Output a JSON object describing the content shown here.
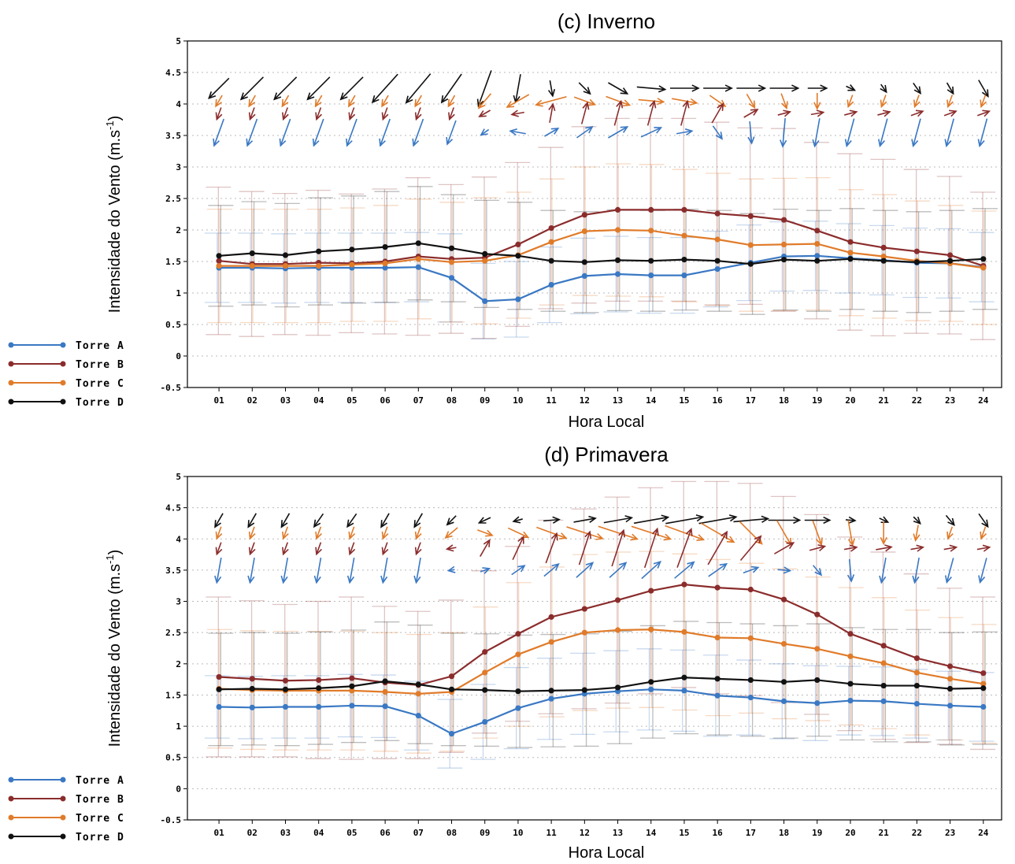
{
  "chart_data": [
    {
      "type": "line",
      "title": "(c) Inverno",
      "xlabel": "Hora Local",
      "ylabel": "Intensidade do Vento (m.s",
      "ylabel_sup": "-1",
      "ylabel_close": ")",
      "ylim": [
        -0.5,
        5
      ],
      "yticks": [
        "5",
        "4.5",
        "4",
        "3.5",
        "3",
        "2.5",
        "2",
        "1.5",
        "1",
        "0.5",
        "0",
        "-0.5"
      ],
      "ytick_values": [
        5,
        4.5,
        4,
        3.5,
        3,
        2.5,
        2,
        1.5,
        1,
        0.5,
        0,
        -0.5
      ],
      "categories": [
        "01",
        "02",
        "03",
        "04",
        "05",
        "06",
        "07",
        "08",
        "09",
        "10",
        "11",
        "12",
        "13",
        "14",
        "15",
        "16",
        "17",
        "18",
        "19",
        "20",
        "21",
        "22",
        "23",
        "24"
      ],
      "grid": true,
      "legend_placement": "bottom-left outside",
      "series": [
        {
          "name": "Torre A",
          "color": "#3a78c3",
          "values": [
            1.4,
            1.4,
            1.39,
            1.4,
            1.4,
            1.4,
            1.41,
            1.24,
            0.87,
            0.9,
            1.13,
            1.27,
            1.3,
            1.28,
            1.28,
            1.38,
            1.48,
            1.58,
            1.59,
            1.55,
            1.52,
            1.48,
            1.47,
            1.41
          ],
          "err": [
            0.55,
            0.55,
            0.55,
            0.55,
            0.55,
            0.55,
            0.55,
            0.7,
            0.6,
            0.6,
            0.6,
            0.6,
            0.6,
            0.6,
            0.6,
            0.6,
            0.6,
            0.55,
            0.55,
            0.55,
            0.55,
            0.55,
            0.55,
            0.55
          ]
        },
        {
          "name": "Torre B",
          "color": "#8b2c2c",
          "values": [
            1.51,
            1.46,
            1.46,
            1.48,
            1.47,
            1.5,
            1.58,
            1.54,
            1.56,
            1.77,
            2.03,
            2.24,
            2.32,
            2.32,
            2.32,
            2.26,
            2.22,
            2.16,
            1.99,
            1.81,
            1.72,
            1.66,
            1.6,
            1.43
          ],
          "err": [
            1.17,
            1.15,
            1.12,
            1.15,
            1.1,
            1.15,
            1.25,
            1.18,
            1.28,
            1.3,
            1.28,
            1.4,
            1.45,
            1.45,
            1.45,
            1.45,
            1.4,
            1.45,
            1.4,
            1.4,
            1.4,
            1.3,
            1.25,
            1.17
          ]
        },
        {
          "name": "Torre C",
          "color": "#e07b2a",
          "values": [
            1.43,
            1.43,
            1.43,
            1.43,
            1.45,
            1.47,
            1.54,
            1.49,
            1.51,
            1.6,
            1.81,
            1.98,
            2.0,
            1.99,
            1.91,
            1.85,
            1.76,
            1.77,
            1.78,
            1.64,
            1.58,
            1.51,
            1.47,
            1.4
          ],
          "err": [
            0.9,
            0.9,
            0.9,
            0.9,
            0.9,
            0.92,
            0.95,
            0.95,
            1.0,
            1.0,
            1.0,
            1.02,
            1.05,
            1.05,
            1.05,
            1.05,
            1.05,
            1.05,
            1.05,
            1.0,
            0.98,
            0.95,
            0.92,
            0.9
          ]
        },
        {
          "name": "Torre D",
          "color": "#111111",
          "values": [
            1.59,
            1.63,
            1.6,
            1.66,
            1.69,
            1.73,
            1.79,
            1.71,
            1.62,
            1.59,
            1.51,
            1.49,
            1.52,
            1.51,
            1.53,
            1.51,
            1.46,
            1.53,
            1.51,
            1.54,
            1.51,
            1.49,
            1.51,
            1.54
          ],
          "err": [
            0.8,
            0.82,
            0.82,
            0.85,
            0.85,
            0.88,
            0.9,
            0.85,
            0.85,
            0.85,
            0.8,
            0.8,
            0.8,
            0.8,
            0.8,
            0.8,
            0.8,
            0.8,
            0.8,
            0.8,
            0.8,
            0.8,
            0.8,
            0.8
          ]
        }
      ],
      "wind_vectors": {
        "Torre D": {
          "y": 4.25,
          "angles": [
            225,
            225,
            225,
            225,
            225,
            222,
            220,
            215,
            200,
            190,
            170,
            135,
            120,
            95,
            90,
            90,
            90,
            90,
            90,
            115,
            145,
            145,
            150,
            150
          ],
          "lengths": [
            0.9,
            1.0,
            1.0,
            1.0,
            1.0,
            1.2,
            1.2,
            1.1,
            1.2,
            0.9,
            0.5,
            0.5,
            0.7,
            0.9,
            0.9,
            0.9,
            0.9,
            0.9,
            0.6,
            0.3,
            0.3,
            0.4,
            0.4,
            0.6
          ]
        },
        "Torre C": {
          "y": 4.05,
          "angles": [
            210,
            210,
            210,
            210,
            210,
            210,
            210,
            210,
            220,
            240,
            255,
            110,
            110,
            95,
            100,
            125,
            150,
            160,
            180,
            200,
            200,
            200,
            200,
            200
          ],
          "lengths": [
            0.4,
            0.4,
            0.4,
            0.4,
            0.4,
            0.4,
            0.4,
            0.4,
            0.6,
            0.8,
            1.0,
            0.7,
            0.8,
            0.8,
            0.8,
            0.6,
            0.5,
            0.5,
            0.5,
            0.4,
            0.4,
            0.4,
            0.4,
            0.4
          ]
        },
        "Torre B": {
          "y": 3.85,
          "angles": [
            200,
            200,
            200,
            200,
            200,
            200,
            200,
            200,
            240,
            260,
            10,
            15,
            15,
            15,
            15,
            30,
            60,
            75,
            80,
            75,
            75,
            70,
            70,
            70
          ],
          "lengths": [
            0.4,
            0.4,
            0.4,
            0.4,
            0.4,
            0.4,
            0.4,
            0.4,
            0.4,
            0.4,
            0.6,
            0.7,
            0.8,
            0.8,
            0.8,
            0.7,
            0.5,
            0.4,
            0.4,
            0.4,
            0.4,
            0.4,
            0.4,
            0.4
          ]
        },
        "Torre A": {
          "y": 3.55,
          "angles": [
            200,
            200,
            200,
            200,
            200,
            200,
            200,
            200,
            235,
            280,
            60,
            55,
            60,
            65,
            80,
            145,
            175,
            185,
            190,
            195,
            195,
            195,
            195,
            195
          ],
          "lengths": [
            0.9,
            0.9,
            0.9,
            0.9,
            0.9,
            0.9,
            0.9,
            0.8,
            0.3,
            0.5,
            0.5,
            0.6,
            0.7,
            0.7,
            0.5,
            0.5,
            0.7,
            0.9,
            0.9,
            0.9,
            0.9,
            0.9,
            0.9,
            0.9
          ]
        }
      }
    },
    {
      "type": "line",
      "title": "(d) Primavera",
      "xlabel": "Hora Local",
      "ylabel": "Intensidade do Vento (m.s",
      "ylabel_sup": "-1",
      "ylabel_close": ")",
      "ylim": [
        -0.5,
        5
      ],
      "yticks": [
        "5",
        "4.5",
        "4",
        "3.5",
        "3",
        "2.5",
        "2",
        "1.5",
        "1",
        "0.5",
        "0",
        "-0.5"
      ],
      "ytick_values": [
        5,
        4.5,
        4,
        3.5,
        3,
        2.5,
        2,
        1.5,
        1,
        0.5,
        0,
        -0.5
      ],
      "categories": [
        "01",
        "02",
        "03",
        "04",
        "05",
        "06",
        "07",
        "08",
        "09",
        "10",
        "11",
        "12",
        "13",
        "14",
        "15",
        "16",
        "17",
        "18",
        "19",
        "20",
        "21",
        "22",
        "23",
        "24"
      ],
      "grid": true,
      "legend_placement": "bottom-left outside",
      "series": [
        {
          "name": "Torre A",
          "color": "#3a78c3",
          "values": [
            1.31,
            1.3,
            1.31,
            1.31,
            1.33,
            1.32,
            1.17,
            0.88,
            1.07,
            1.29,
            1.44,
            1.52,
            1.56,
            1.59,
            1.57,
            1.49,
            1.46,
            1.4,
            1.37,
            1.41,
            1.4,
            1.36,
            1.33,
            1.31
          ],
          "err": [
            0.5,
            0.5,
            0.5,
            0.5,
            0.5,
            0.5,
            0.55,
            0.55,
            0.6,
            0.65,
            0.65,
            0.65,
            0.65,
            0.65,
            0.65,
            0.65,
            0.6,
            0.6,
            0.6,
            0.55,
            0.55,
            0.55,
            0.55,
            0.55
          ]
        },
        {
          "name": "Torre B",
          "color": "#8b2c2c",
          "values": [
            1.79,
            1.76,
            1.73,
            1.74,
            1.77,
            1.7,
            1.66,
            1.8,
            2.19,
            2.48,
            2.75,
            2.88,
            3.02,
            3.17,
            3.27,
            3.22,
            3.19,
            3.03,
            2.79,
            2.48,
            2.29,
            2.09,
            1.96,
            1.85
          ],
          "err": [
            1.28,
            1.25,
            1.22,
            1.26,
            1.3,
            1.22,
            1.18,
            1.22,
            1.3,
            1.4,
            1.55,
            1.6,
            1.65,
            1.65,
            1.65,
            1.7,
            1.7,
            1.65,
            1.6,
            1.55,
            1.5,
            1.35,
            1.25,
            1.22
          ]
        },
        {
          "name": "Torre C",
          "color": "#e07b2a",
          "values": [
            1.6,
            1.58,
            1.57,
            1.57,
            1.57,
            1.55,
            1.52,
            1.55,
            1.86,
            2.15,
            2.35,
            2.5,
            2.54,
            2.55,
            2.51,
            2.42,
            2.41,
            2.32,
            2.24,
            2.12,
            2.01,
            1.86,
            1.76,
            1.68
          ],
          "err": [
            0.95,
            0.95,
            0.95,
            0.95,
            0.95,
            0.95,
            0.95,
            0.95,
            1.05,
            1.15,
            1.2,
            1.25,
            1.25,
            1.25,
            1.25,
            1.25,
            1.2,
            1.2,
            1.15,
            1.1,
            1.05,
            1.0,
            0.98,
            0.95
          ]
        },
        {
          "name": "Torre D",
          "color": "#111111",
          "values": [
            1.59,
            1.6,
            1.59,
            1.61,
            1.64,
            1.72,
            1.67,
            1.59,
            1.58,
            1.56,
            1.57,
            1.58,
            1.62,
            1.71,
            1.78,
            1.76,
            1.74,
            1.71,
            1.74,
            1.68,
            1.65,
            1.65,
            1.6,
            1.61
          ],
          "err": [
            0.9,
            0.9,
            0.9,
            0.9,
            0.9,
            0.95,
            0.95,
            0.9,
            0.9,
            0.9,
            0.9,
            0.9,
            0.9,
            0.9,
            0.9,
            0.9,
            0.9,
            0.9,
            0.9,
            0.9,
            0.9,
            0.9,
            0.9,
            0.9
          ]
        }
      ],
      "wind_vectors": {
        "Torre D": {
          "y": 4.3,
          "angles": [
            210,
            210,
            210,
            215,
            215,
            210,
            210,
            225,
            245,
            255,
            85,
            80,
            80,
            80,
            80,
            80,
            85,
            90,
            90,
            95,
            115,
            135,
            140,
            145
          ],
          "lengths": [
            0.5,
            0.5,
            0.5,
            0.5,
            0.5,
            0.5,
            0.5,
            0.4,
            0.4,
            0.3,
            0.5,
            0.7,
            0.9,
            1.1,
            1.2,
            1.2,
            1.1,
            1.0,
            0.8,
            0.3,
            0.3,
            0.3,
            0.4,
            0.5
          ]
        },
        "Torre C": {
          "y": 4.1,
          "angles": [
            200,
            200,
            200,
            200,
            200,
            200,
            200,
            230,
            110,
            115,
            110,
            108,
            108,
            108,
            110,
            120,
            135,
            150,
            160,
            170,
            180,
            190,
            200,
            200
          ],
          "lengths": [
            0.4,
            0.4,
            0.4,
            0.4,
            0.4,
            0.4,
            0.4,
            0.5,
            0.5,
            0.7,
            1.0,
            1.2,
            1.3,
            1.3,
            1.3,
            1.2,
            1.0,
            0.9,
            0.8,
            0.8,
            0.7,
            0.5,
            0.4,
            0.4
          ]
        },
        "Torre B": {
          "y": 3.85,
          "angles": [
            200,
            200,
            200,
            200,
            200,
            200,
            200,
            260,
            30,
            25,
            20,
            18,
            18,
            18,
            20,
            30,
            40,
            60,
            75,
            80,
            80,
            80,
            80,
            80
          ],
          "lengths": [
            0.4,
            0.4,
            0.4,
            0.4,
            0.4,
            0.4,
            0.4,
            0.3,
            0.6,
            0.8,
            1.0,
            1.1,
            1.2,
            1.3,
            1.3,
            1.2,
            1.0,
            0.7,
            0.5,
            0.4,
            0.5,
            0.4,
            0.4,
            0.4
          ]
        },
        "Torre A": {
          "y": 3.5,
          "angles": [
            190,
            190,
            190,
            190,
            190,
            190,
            190,
            260,
            70,
            55,
            50,
            48,
            48,
            48,
            50,
            55,
            70,
            95,
            140,
            175,
            190,
            190,
            195,
            195
          ],
          "lengths": [
            0.8,
            0.8,
            0.8,
            0.8,
            0.8,
            0.8,
            0.8,
            0.2,
            0.3,
            0.5,
            0.6,
            0.7,
            0.7,
            0.8,
            0.8,
            0.7,
            0.5,
            0.4,
            0.4,
            0.7,
            0.8,
            0.8,
            0.8,
            0.8
          ]
        }
      }
    }
  ]
}
